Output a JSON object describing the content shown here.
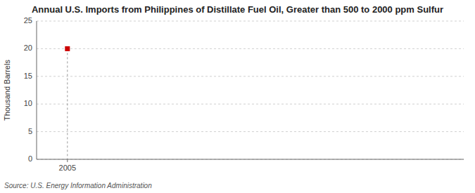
{
  "chart_data": {
    "type": "scatter",
    "title": "Annual U.S. Imports from Philippines of Distillate Fuel Oil, Greater than 500 to 2000 ppm Sulfur",
    "y_label": "Thousand Barrels",
    "source": "Source: U.S. Energy Information Administration",
    "x": [
      2005
    ],
    "values": [
      20
    ],
    "color": "#cc0000",
    "marker": "square",
    "xlim": [
      2004.3,
      2014.0
    ],
    "ylim": [
      0,
      25
    ],
    "xticks": [
      2005
    ],
    "yticks": [
      0,
      5,
      10,
      15,
      20,
      25
    ],
    "grid": true
  }
}
